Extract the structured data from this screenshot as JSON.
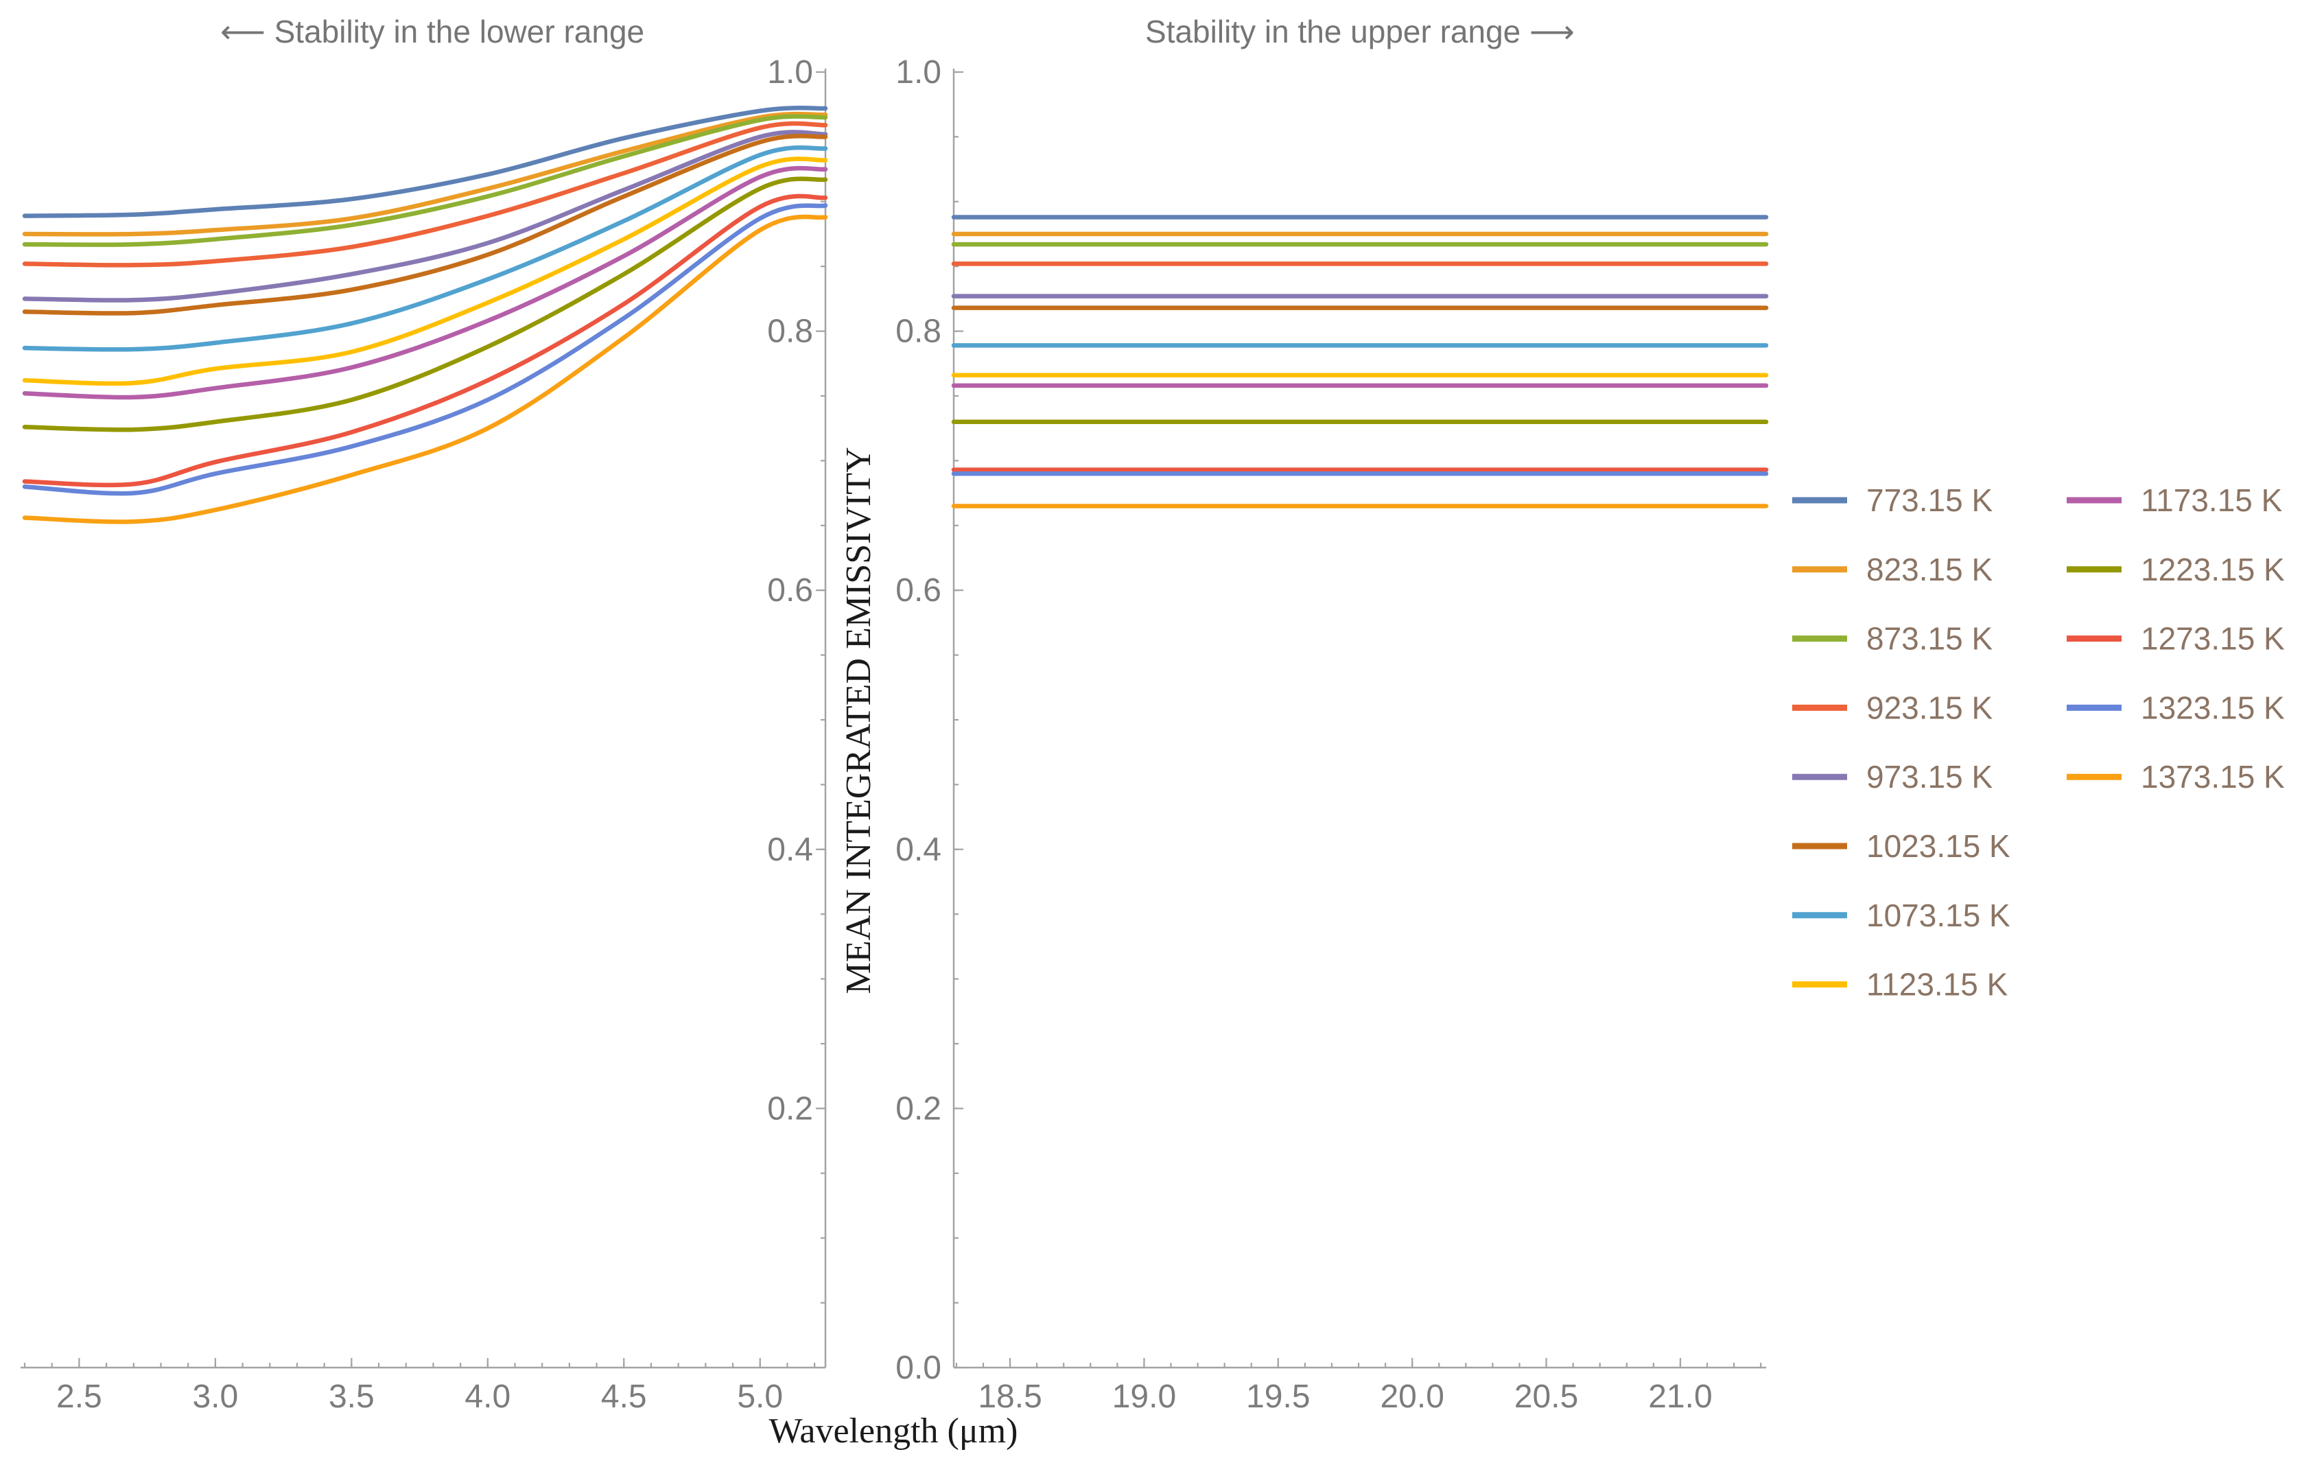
{
  "figure": {
    "left_title": "⟵  Stability in the lower range",
    "right_title": "Stability in the upper range  ⟶",
    "x_label": "Wavelength (μm)",
    "y_label": "MEAN INTEGRATED EMISSIVITY"
  },
  "chart_data": [
    {
      "type": "line",
      "panel": "left",
      "title": "⟵ Stability in the lower range",
      "xlabel": "Wavelength (μm)",
      "ylabel": "MEAN INTEGRATED EMISSIVITY",
      "xlim": [
        2.3,
        5.24
      ],
      "ylim": [
        0.0,
        1.0
      ],
      "grid": false,
      "x_ticks": [
        {
          "v": 2.5,
          "label": "2.5"
        },
        {
          "v": 3.0,
          "label": "3.0"
        },
        {
          "v": 3.5,
          "label": "3.5"
        },
        {
          "v": 4.0,
          "label": "4.0"
        },
        {
          "v": 4.5,
          "label": "4.5"
        },
        {
          "v": 5.0,
          "label": "5.0"
        }
      ],
      "x_minor_step": 0.1,
      "y_ticks": [
        {
          "v": 1.0,
          "label": "1.0"
        },
        {
          "v": 0.8,
          "label": "0.8"
        },
        {
          "v": 0.6,
          "label": "0.6"
        },
        {
          "v": 0.4,
          "label": "0.4"
        },
        {
          "v": 0.2,
          "label": "0.2"
        }
      ],
      "y_minor_step": 0.05,
      "x": [
        2.3,
        2.7,
        3.0,
        3.5,
        4.0,
        4.5,
        5.0,
        5.24
      ],
      "series": [
        {
          "name": "773.15 K",
          "color": "#5e81b5",
          "values": [
            0.889,
            0.89,
            0.894,
            0.902,
            0.921,
            0.949,
            0.97,
            0.972
          ]
        },
        {
          "name": "823.15 K",
          "color": "#eb9c26",
          "values": [
            0.875,
            0.875,
            0.878,
            0.887,
            0.91,
            0.939,
            0.965,
            0.967
          ]
        },
        {
          "name": "873.15 K",
          "color": "#8fb032",
          "values": [
            0.867,
            0.867,
            0.871,
            0.882,
            0.904,
            0.935,
            0.963,
            0.965
          ]
        },
        {
          "name": "923.15 K",
          "color": "#ee6239",
          "values": [
            0.852,
            0.851,
            0.854,
            0.865,
            0.889,
            0.922,
            0.957,
            0.959
          ]
        },
        {
          "name": "973.15 K",
          "color": "#8778b3",
          "values": [
            0.825,
            0.824,
            0.829,
            0.844,
            0.868,
            0.909,
            0.95,
            0.952
          ]
        },
        {
          "name": "1023.15 K",
          "color": "#c56e1a",
          "values": [
            0.815,
            0.814,
            0.82,
            0.832,
            0.859,
            0.904,
            0.946,
            0.95
          ]
        },
        {
          "name": "1073.15 K",
          "color": "#51a2cf",
          "values": [
            0.787,
            0.786,
            0.791,
            0.806,
            0.84,
            0.885,
            0.936,
            0.941
          ]
        },
        {
          "name": "1123.15 K",
          "color": "#ffbf00",
          "values": [
            0.762,
            0.76,
            0.771,
            0.784,
            0.822,
            0.871,
            0.927,
            0.932
          ]
        },
        {
          "name": "1173.15 K",
          "color": "#b55fa9",
          "values": [
            0.752,
            0.749,
            0.756,
            0.772,
            0.808,
            0.858,
            0.919,
            0.925
          ]
        },
        {
          "name": "1223.15 K",
          "color": "#949800",
          "values": [
            0.726,
            0.724,
            0.73,
            0.747,
            0.788,
            0.844,
            0.91,
            0.917
          ]
        },
        {
          "name": "1273.15 K",
          "color": "#ec5540",
          "values": [
            0.684,
            0.682,
            0.699,
            0.722,
            0.762,
            0.821,
            0.896,
            0.903
          ]
        },
        {
          "name": "1323.15 K",
          "color": "#6685d9",
          "values": [
            0.68,
            0.675,
            0.69,
            0.711,
            0.747,
            0.81,
            0.887,
            0.897
          ]
        },
        {
          "name": "1373.15 K",
          "color": "#f9a013",
          "values": [
            0.656,
            0.653,
            0.662,
            0.689,
            0.725,
            0.795,
            0.878,
            0.888
          ]
        }
      ]
    },
    {
      "type": "line",
      "panel": "right",
      "title": "Stability in the upper range ⟶",
      "xlabel": "Wavelength (μm)",
      "ylabel": "",
      "xlim": [
        18.29,
        21.32
      ],
      "ylim": [
        0.0,
        1.0
      ],
      "grid": false,
      "x_ticks": [
        {
          "v": 18.5,
          "label": "18.5"
        },
        {
          "v": 19.0,
          "label": "19.0"
        },
        {
          "v": 19.5,
          "label": "19.5"
        },
        {
          "v": 20.0,
          "label": "20.0"
        },
        {
          "v": 20.5,
          "label": "20.5"
        },
        {
          "v": 21.0,
          "label": "21.0"
        }
      ],
      "x_minor_step": 0.1,
      "y_ticks": [
        {
          "v": 1.0,
          "label": "1.0"
        },
        {
          "v": 0.8,
          "label": "0.8"
        },
        {
          "v": 0.6,
          "label": "0.6"
        },
        {
          "v": 0.4,
          "label": "0.4"
        },
        {
          "v": 0.2,
          "label": "0.2"
        },
        {
          "v": 0.0,
          "label": "0.0"
        }
      ],
      "y_minor_step": 0.05,
      "x": [
        18.29,
        21.32
      ],
      "series": [
        {
          "name": "773.15 K",
          "color": "#5e81b5",
          "values": [
            0.888,
            0.888
          ]
        },
        {
          "name": "823.15 K",
          "color": "#eb9c26",
          "values": [
            0.875,
            0.875
          ]
        },
        {
          "name": "873.15 K",
          "color": "#8fb032",
          "values": [
            0.867,
            0.867
          ]
        },
        {
          "name": "923.15 K",
          "color": "#ee6239",
          "values": [
            0.852,
            0.852
          ]
        },
        {
          "name": "973.15 K",
          "color": "#8778b3",
          "values": [
            0.827,
            0.827
          ]
        },
        {
          "name": "1023.15 K",
          "color": "#c56e1a",
          "values": [
            0.818,
            0.818
          ]
        },
        {
          "name": "1073.15 K",
          "color": "#51a2cf",
          "values": [
            0.789,
            0.789
          ]
        },
        {
          "name": "1123.15 K",
          "color": "#ffbf00",
          "values": [
            0.766,
            0.766
          ]
        },
        {
          "name": "1173.15 K",
          "color": "#b55fa9",
          "values": [
            0.758,
            0.758
          ]
        },
        {
          "name": "1223.15 K",
          "color": "#949800",
          "values": [
            0.73,
            0.73
          ]
        },
        {
          "name": "1273.15 K",
          "color": "#ec5540",
          "values": [
            0.693,
            0.693
          ]
        },
        {
          "name": "1323.15 K",
          "color": "#6685d9",
          "values": [
            0.69,
            0.69
          ]
        },
        {
          "name": "1373.15 K",
          "color": "#f9a013",
          "values": [
            0.665,
            0.665
          ]
        }
      ]
    }
  ],
  "legend": {
    "position": "right",
    "column_split": 8,
    "unit": "K"
  }
}
